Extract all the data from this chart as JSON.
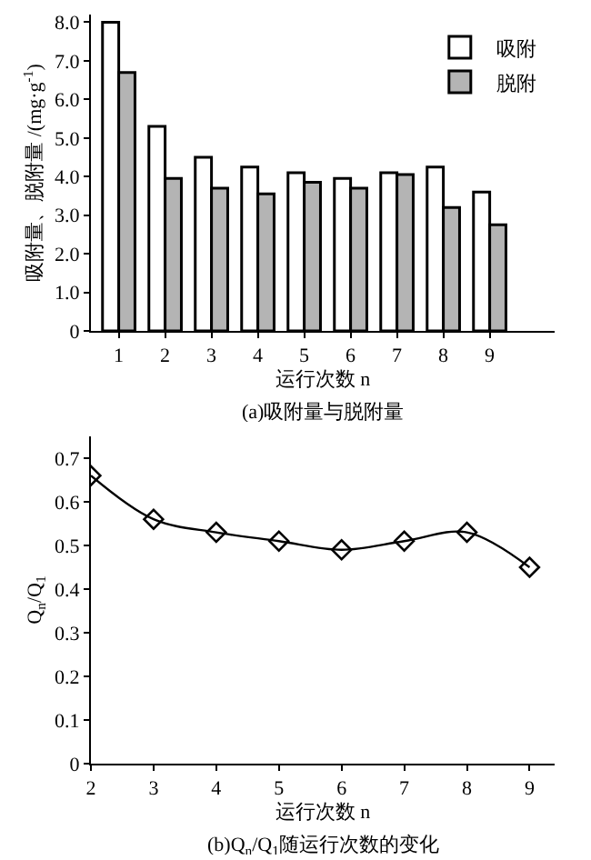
{
  "chart_data": [
    {
      "type": "bar",
      "title": "(a)吸附量与脱附量",
      "xlabel": "运行次数 n",
      "ylabel": "吸附量、脱附量 /(mg·g$^{-1}$)",
      "categories": [
        "1",
        "2",
        "3",
        "4",
        "5",
        "6",
        "7",
        "8",
        "9"
      ],
      "series": [
        {
          "name": "吸附",
          "color": "#ffffff",
          "values": [
            8.0,
            5.3,
            4.5,
            4.25,
            4.1,
            3.95,
            4.1,
            4.25,
            3.6
          ]
        },
        {
          "name": "脱附",
          "color": "#b4b4b4",
          "values": [
            6.7,
            3.95,
            3.7,
            3.55,
            3.85,
            3.7,
            4.05,
            3.2,
            2.75
          ]
        }
      ],
      "ylim": [
        0,
        8.2
      ],
      "yticks": [
        0,
        {
          "value": 1,
          "label": "1.0"
        },
        {
          "value": 2,
          "label": "2.0"
        },
        {
          "value": 3,
          "label": "3.0"
        },
        {
          "value": 4,
          "label": "4.0"
        },
        {
          "value": 5,
          "label": "5.0"
        },
        {
          "value": 6,
          "label": "6.0"
        },
        {
          "value": 7,
          "label": "7.0"
        },
        {
          "value": 8,
          "label": "8.0"
        }
      ],
      "grid": false,
      "legend": "top right"
    },
    {
      "type": "line",
      "title": "(b)Q$_{n}$/Q$_{1}$随运行次数的变化",
      "xlabel": "运行次数 n",
      "ylabel": "Q$_{n}$/Q$_{1}$",
      "x": [
        2,
        3,
        4,
        5,
        6,
        7,
        8,
        9
      ],
      "series": [
        {
          "color": "#000000",
          "values": [
            0.66,
            0.56,
            0.53,
            0.51,
            0.49,
            0.51,
            0.53,
            0.45
          ]
        }
      ],
      "xlim": [
        2,
        9.4
      ],
      "xticks": [
        2,
        3,
        4,
        5,
        6,
        7,
        8,
        9
      ],
      "ylim": [
        0,
        0.75
      ],
      "yticks": [
        0,
        0.1,
        0.2,
        0.3,
        0.4,
        0.5,
        0.6,
        0.7
      ],
      "marker": "diamond",
      "line_style": "solid",
      "grid": false,
      "legend": false
    }
  ]
}
